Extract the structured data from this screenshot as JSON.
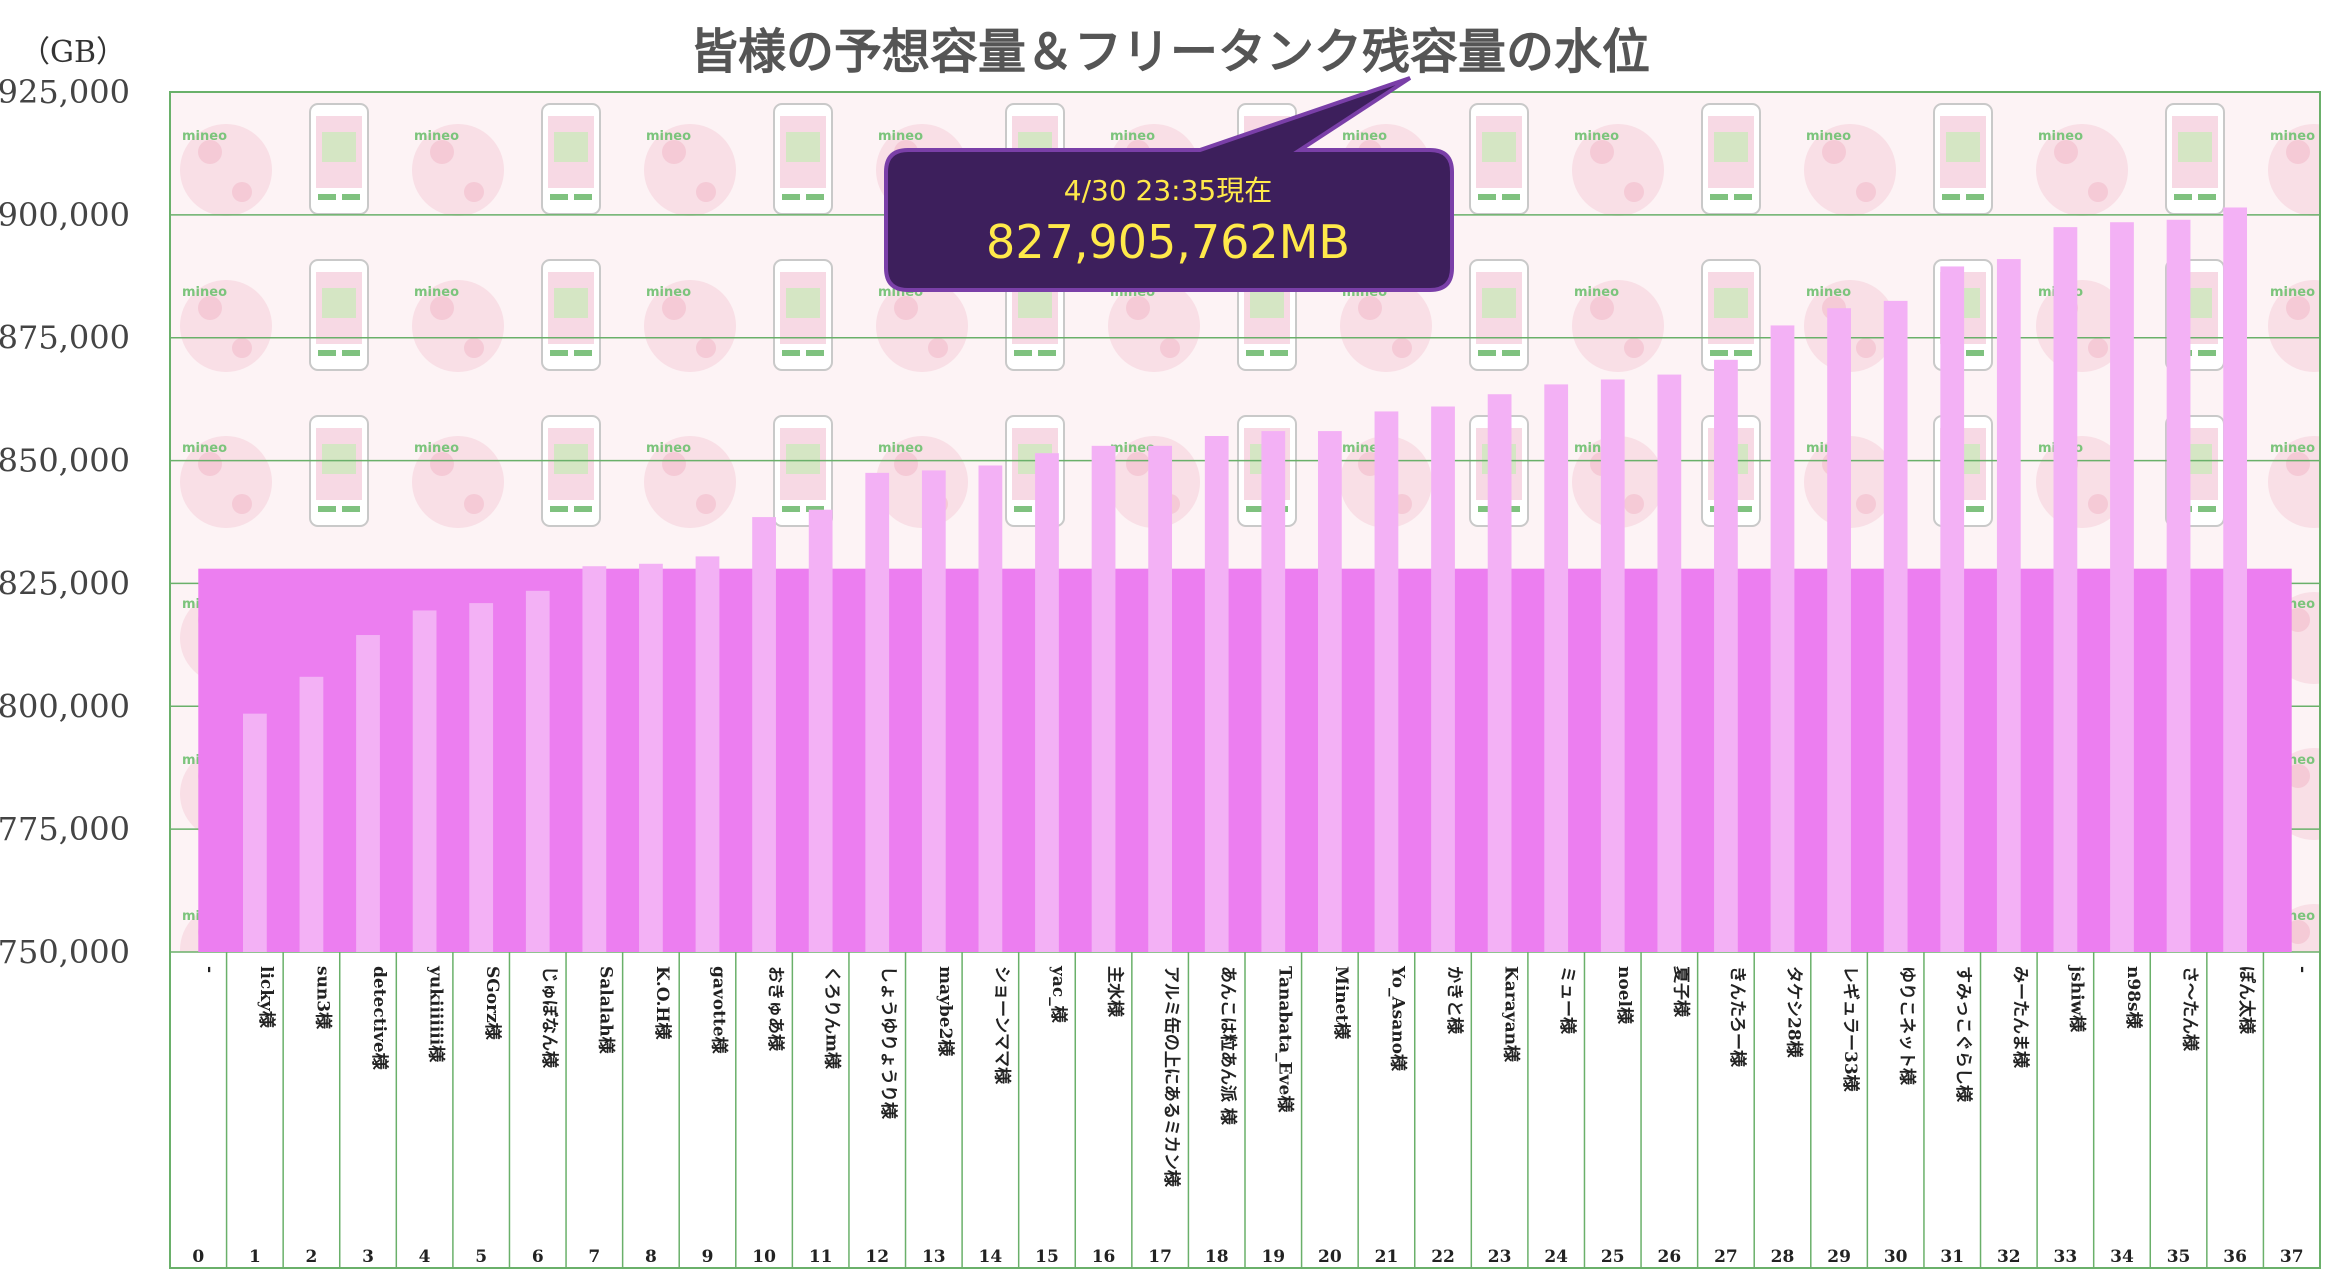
{
  "chart_data": {
    "type": "bar",
    "title": "皆様の予想容量＆フリータンク残容量の水位",
    "unit_label": "（GB）",
    "ylim": [
      750000,
      925000
    ],
    "y_ticks": [
      750000,
      775000,
      800000,
      825000,
      850000,
      875000,
      900000,
      925000
    ],
    "y_tick_labels": [
      "750,000",
      "775,000",
      "800,000",
      "825,000",
      "850,000",
      "875,000",
      "900,000",
      "925,000"
    ],
    "water_level": 828000,
    "callout": {
      "line1": "4/30 23:35現在",
      "line2": "827,905,762MB"
    },
    "colors": {
      "bar": "#f3b1f5",
      "water": "#ec7ef0",
      "grid": "#6ab06a",
      "callout_bg": "#3d1f5c",
      "callout_text": "#ffe94a"
    },
    "categories": [
      "0",
      "1",
      "2",
      "3",
      "4",
      "5",
      "6",
      "7",
      "8",
      "9",
      "10",
      "11",
      "12",
      "13",
      "14",
      "15",
      "16",
      "17",
      "18",
      "19",
      "20",
      "21",
      "22",
      "23",
      "24",
      "25",
      "26",
      "27",
      "28",
      "29",
      "30",
      "31",
      "32",
      "33",
      "34",
      "35",
      "36",
      "37"
    ],
    "names": [
      "-",
      "licky様",
      "sun3様",
      "detective様",
      "yukiiiiiii様",
      "SGorz様",
      "じゅぼなん様",
      "Salalah様",
      "K.O.H様",
      "gavotte様",
      "おきゅあ様",
      "くろりんm様",
      "しょうゆりょうり様",
      "maybe2様",
      "ショーンママ様",
      "yac_様",
      "主水様",
      "アルミ缶の上にあるミカン様",
      "あんこは粒あん派 様",
      "Tanabata_Eve様",
      "Minet様",
      "Yo_Asano様",
      "かきと様",
      "Karayan様",
      "ミュー様",
      "noel様",
      "夏子様",
      "きんたろー様",
      "タケシ28様",
      "レギュラー33様",
      "ゆりこネット様",
      "すみっこぐらし様",
      "みーたんま様",
      "jshiw様",
      "n98s様",
      "さ〜たん様",
      "ぽん太様",
      "-"
    ],
    "values": [
      null,
      798500,
      806000,
      814500,
      819500,
      821000,
      823500,
      828500,
      829000,
      830500,
      838500,
      840000,
      847500,
      848000,
      849000,
      851500,
      853000,
      853000,
      855000,
      856000,
      856000,
      860000,
      861000,
      863500,
      865500,
      866500,
      867500,
      870500,
      877500,
      881000,
      882500,
      889500,
      891000,
      897500,
      898500,
      899000,
      901500,
      null
    ]
  }
}
